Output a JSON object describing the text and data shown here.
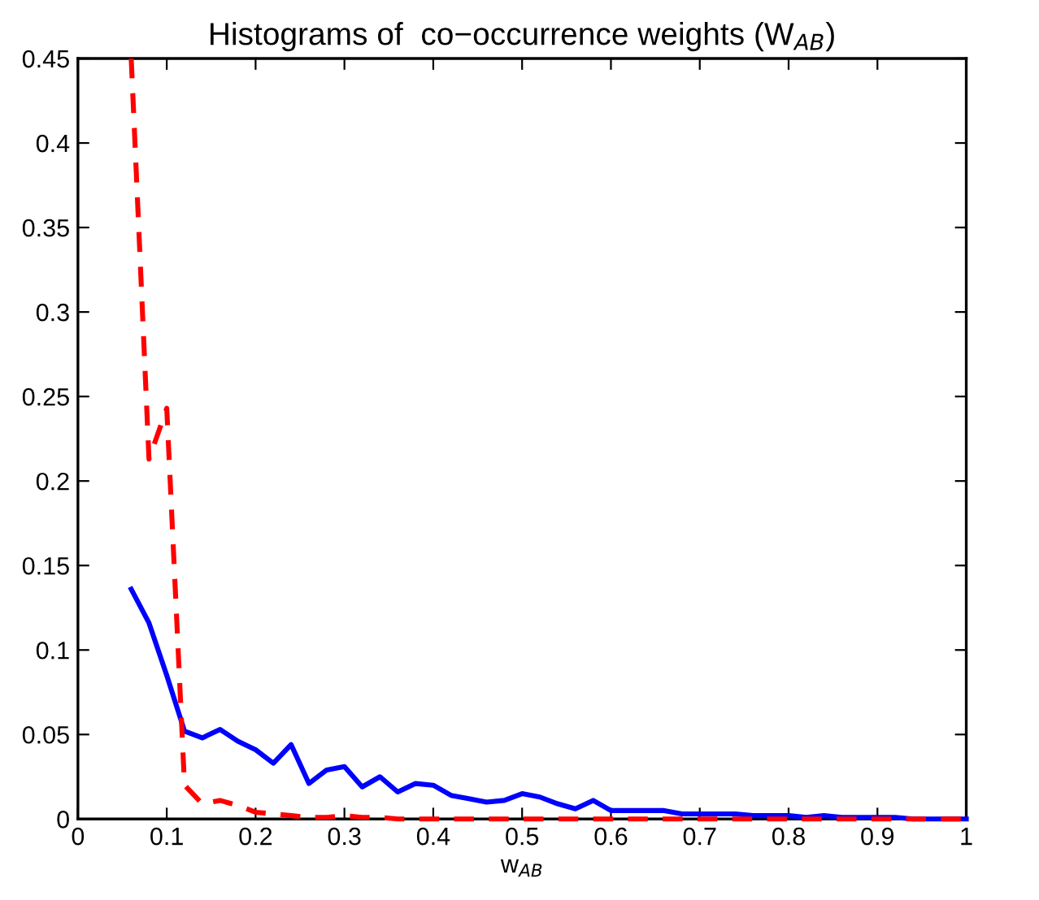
{
  "chart_data": {
    "type": "line",
    "title": "Histograms of  co−occurrence weights (W$_{AB}$)",
    "xlabel": "w$_{AB}$",
    "xlim": [
      0,
      1
    ],
    "xticks": [
      0,
      0.1,
      0.2,
      0.3,
      0.4,
      0.5,
      0.6,
      0.7,
      0.8,
      0.9,
      1
    ],
    "ylim": [
      0,
      0.45
    ],
    "yticks": [
      0,
      0.05,
      0.1,
      0.15,
      0.2,
      0.25,
      0.3,
      0.35,
      0.4,
      0.45
    ],
    "grid": false,
    "legend": false,
    "marker": "none",
    "series": [
      {
        "color": "#0000ff",
        "line_style": "solid",
        "x": [
          0.06,
          0.08,
          0.1,
          0.12,
          0.14,
          0.16,
          0.18,
          0.2,
          0.22,
          0.24,
          0.26,
          0.28,
          0.3,
          0.32,
          0.34,
          0.36,
          0.38,
          0.4,
          0.42,
          0.44,
          0.46,
          0.48,
          0.5,
          0.52,
          0.54,
          0.56,
          0.58,
          0.6,
          0.62,
          0.64,
          0.66,
          0.68,
          0.7,
          0.72,
          0.74,
          0.76,
          0.78,
          0.8,
          0.82,
          0.84,
          0.86,
          0.88,
          0.9,
          0.92,
          0.94,
          0.96,
          0.98,
          1.0
        ],
        "values": [
          0.136,
          0.116,
          0.085,
          0.052,
          0.048,
          0.053,
          0.046,
          0.041,
          0.033,
          0.044,
          0.021,
          0.029,
          0.031,
          0.019,
          0.025,
          0.016,
          0.021,
          0.02,
          0.014,
          0.012,
          0.01,
          0.011,
          0.015,
          0.013,
          0.009,
          0.006,
          0.011,
          0.005,
          0.005,
          0.005,
          0.005,
          0.003,
          0.003,
          0.003,
          0.003,
          0.002,
          0.002,
          0.002,
          0.001,
          0.002,
          0.001,
          0.001,
          0.001,
          0.001,
          0.0,
          0.0,
          0.0,
          0.0
        ]
      },
      {
        "color": "#ff0000",
        "line_style": "dashed",
        "x": [
          0.06,
          0.08,
          0.1,
          0.12,
          0.14,
          0.16,
          0.18,
          0.2,
          0.22,
          0.24,
          0.26,
          0.28,
          0.3,
          0.32,
          0.34,
          0.36,
          0.38,
          0.4,
          0.5,
          0.6,
          0.7,
          0.8,
          0.9,
          1.0
        ],
        "values": [
          0.45,
          0.213,
          0.243,
          0.02,
          0.009,
          0.011,
          0.008,
          0.004,
          0.003,
          0.002,
          0.001,
          0.001,
          0.002,
          0.001,
          0.001,
          0.0,
          0.0,
          0.0,
          0.0,
          0.0,
          0.0,
          0.0,
          0.0,
          0.0
        ]
      }
    ]
  }
}
